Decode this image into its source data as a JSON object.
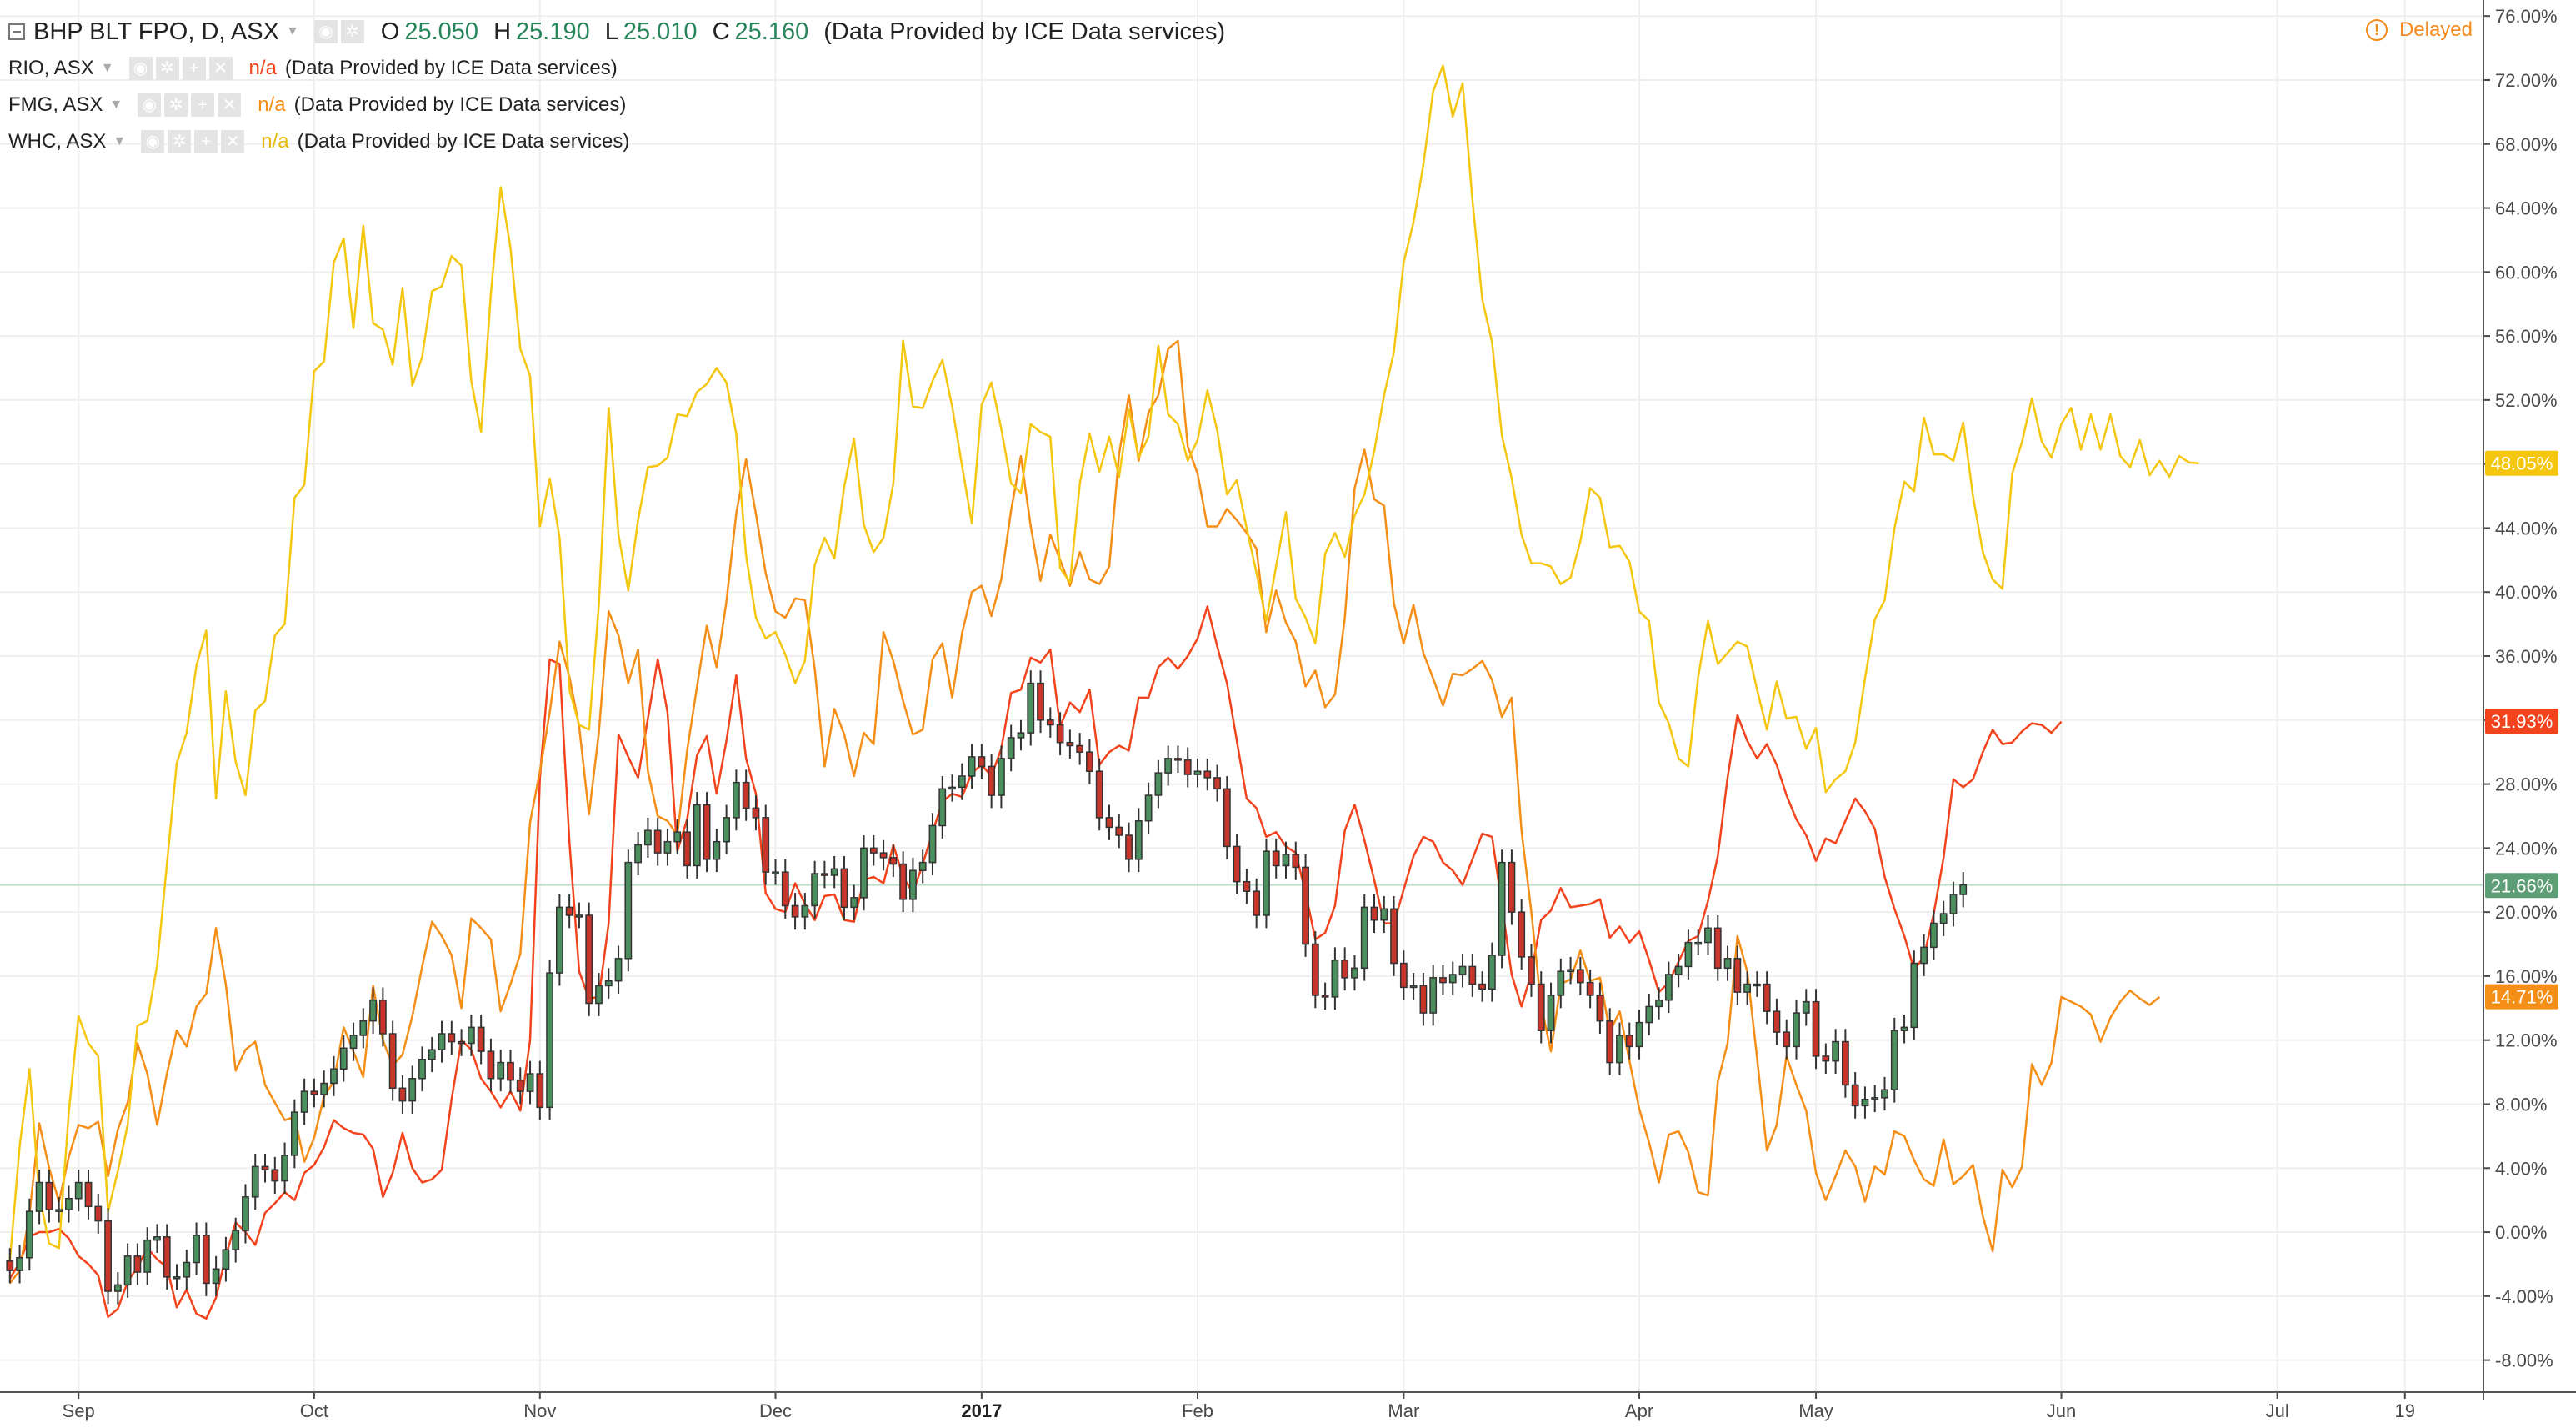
{
  "legend": {
    "main": {
      "symbol": "BHP BLT FPO, D, ASX",
      "o_label": "O",
      "o": "25.050",
      "h_label": "H",
      "h": "25.190",
      "l_label": "L",
      "l": "25.010",
      "c_label": "C",
      "c": "25.160",
      "provider": "(Data Provided by ICE Data services)"
    },
    "compare": [
      {
        "symbol": "RIO, ASX",
        "value": "n/a",
        "provider": "(Data Provided by ICE Data services)",
        "color": "#f2431c"
      },
      {
        "symbol": "FMG, ASX",
        "value": "n/a",
        "provider": "(Data Provided by ICE Data services)",
        "color": "#f58e16"
      },
      {
        "symbol": "WHC, ASX",
        "value": "n/a",
        "provider": "(Data Provided by ICE Data services)",
        "color": "#f5c60f"
      }
    ]
  },
  "status": {
    "delayed": "Delayed",
    "icon": "exclamation-circle-icon"
  },
  "colors": {
    "up": "#4b8f5e",
    "down": "#c8352a",
    "rio": "#f2431c",
    "fmg": "#f58e16",
    "whc": "#f5c60f",
    "grid": "#efefef"
  },
  "chart_data": {
    "type": "candlestick-with-comparison-lines",
    "y_unit": "%",
    "ylim": [
      -10,
      77
    ],
    "y_ticks": [
      "76.00%",
      "72.00%",
      "68.00%",
      "64.00%",
      "60.00%",
      "56.00%",
      "52.00%",
      "48.00%",
      "44.00%",
      "40.00%",
      "36.00%",
      "32.00%",
      "28.00%",
      "24.00%",
      "20.00%",
      "16.00%",
      "12.00%",
      "8.00%",
      "4.00%",
      "0.00%",
      "-4.00%",
      "-8.00%"
    ],
    "x_ticks": [
      {
        "label": "Sep",
        "x": 7,
        "bold": false
      },
      {
        "label": "Oct",
        "x": 31,
        "bold": false
      },
      {
        "label": "Nov",
        "x": 54,
        "bold": false
      },
      {
        "label": "Dec",
        "x": 78,
        "bold": false
      },
      {
        "label": "2017",
        "x": 99,
        "bold": true
      },
      {
        "label": "Feb",
        "x": 121,
        "bold": false
      },
      {
        "label": "Mar",
        "x": 142,
        "bold": false
      },
      {
        "label": "Apr",
        "x": 166,
        "bold": false
      },
      {
        "label": "May",
        "x": 184,
        "bold": false
      },
      {
        "label": "Jun",
        "x": 209,
        "bold": false
      },
      {
        "label": "Jul",
        "x": 231,
        "bold": false
      },
      {
        "label": "19",
        "x": 244,
        "bold": false
      }
    ],
    "grid": true,
    "last_values": [
      {
        "series": "WHC, ASX",
        "label": "48.05%",
        "value": 48.05
      },
      {
        "series": "RIO, ASX",
        "label": "31.93%",
        "value": 31.93
      },
      {
        "series": "BHP BLT FPO, D, ASX",
        "label": "21.66%",
        "value": 21.66
      },
      {
        "series": "FMG, ASX",
        "label": "14.71%",
        "value": 14.71
      }
    ],
    "x_domain": [
      -1,
      252
    ],
    "candle_series": {
      "name": "BHP BLT FPO, D, ASX",
      "close": [
        -2.4,
        -1.6,
        1.3,
        3.1,
        1.4,
        1.4,
        2.1,
        3.1,
        1.6,
        0.7,
        -3.7,
        -3.3,
        -1.5,
        -2.5,
        -0.5,
        -0.3,
        -2.8,
        -2.8,
        -1.9,
        -0.2,
        -3.2,
        -2.3,
        -1.1,
        0.1,
        2.2,
        4.1,
        3.9,
        3.2,
        4.8,
        7.5,
        8.8,
        8.6,
        9.3,
        10.2,
        11.5,
        12.3,
        13.2,
        14.5,
        12.4,
        9.0,
        8.2,
        9.6,
        10.8,
        11.4,
        12.4,
        11.9,
        11.8,
        12.8,
        11.3,
        9.6,
        10.6,
        9.5,
        8.8,
        9.9,
        7.8,
        16.2,
        20.3,
        19.8,
        19.8,
        14.3,
        15.4,
        15.7,
        17.1,
        23.1,
        24.2,
        25.1,
        23.7,
        24.4,
        25.0,
        22.9,
        26.7,
        23.3,
        24.4,
        25.9,
        28.1,
        26.5,
        25.9,
        22.5,
        22.5,
        20.4,
        19.7,
        20.4,
        22.4,
        22.3,
        22.7,
        20.3,
        20.9,
        24.0,
        23.7,
        23.4,
        23.0,
        20.8,
        22.6,
        23.1,
        25.4,
        27.7,
        27.8,
        28.5,
        29.7,
        29.1,
        27.3,
        29.6,
        30.9,
        31.2,
        34.3,
        32.0,
        31.7,
        30.6,
        30.4,
        30.0,
        28.8,
        25.9,
        25.3,
        24.8,
        23.3,
        25.7,
        27.3,
        28.7,
        29.6,
        29.5,
        28.6,
        28.8,
        28.4,
        27.7,
        24.1,
        21.9,
        21.3,
        19.8,
        23.8,
        22.9,
        23.6,
        22.8,
        18.0,
        14.8,
        14.7,
        17.0,
        15.9,
        16.5,
        20.3,
        19.5,
        20.2,
        16.8,
        15.3,
        15.4,
        13.7,
        15.9,
        15.6,
        16.1,
        16.6,
        15.5,
        15.2,
        17.3,
        23.1,
        20.0,
        17.2,
        15.5,
        12.6,
        14.8,
        16.3,
        16.4,
        15.6,
        14.8,
        13.2,
        10.6,
        12.3,
        11.6,
        13.1,
        14.1,
        14.5,
        16.1,
        16.6,
        18.1,
        18.1,
        19.0,
        16.5,
        17.1,
        15.0,
        15.5,
        15.5,
        13.8,
        12.5,
        11.6,
        13.7,
        14.4,
        11.0,
        10.7,
        11.9,
        9.2,
        7.9,
        8.3,
        8.4,
        8.9,
        12.6,
        12.8,
        16.8,
        17.8,
        19.3,
        19.9,
        21.1,
        21.7
      ]
    },
    "line_series": [
      {
        "name": "RIO, ASX",
        "color": "#f2431c",
        "values": [
          -2.9,
          -1.9,
          -0.3,
          0.0,
          0.0,
          0.2,
          -0.4,
          -1.5,
          -2.0,
          -2.7,
          -5.3,
          -4.8,
          -3.1,
          -2.2,
          -1.0,
          -1.7,
          -2.2,
          -4.7,
          -3.6,
          -5.1,
          -5.4,
          -4.1,
          -1.5,
          0.6,
          0.0,
          -0.8,
          1.2,
          1.8,
          2.5,
          2.0,
          3.7,
          4.2,
          5.3,
          7.0,
          6.5,
          6.2,
          6.1,
          5.2,
          2.2,
          3.7,
          6.2,
          4.0,
          3.1,
          3.3,
          3.9,
          8.3,
          12.0,
          11.4,
          9.6,
          8.8,
          7.8,
          8.8,
          7.6,
          12.0,
          28.4,
          35.8,
          35.5,
          24.4,
          16.3,
          14.6,
          14.7,
          19.3,
          31.1,
          29.7,
          28.4,
          32.1,
          35.8,
          32.5,
          23.8,
          25.8,
          29.8,
          31.0,
          27.4,
          30.7,
          34.8,
          29.6,
          27.4,
          21.2,
          20.2,
          20.0,
          21.8,
          20.5,
          19.5,
          21.0,
          21.1,
          19.5,
          19.4,
          22.0,
          22.2,
          21.8,
          24.2,
          22.2,
          21.2,
          23.0,
          25.0,
          26.9,
          27.4,
          27.2,
          28.7,
          29.2,
          28.5,
          30.2,
          33.7,
          33.9,
          35.9,
          35.6,
          36.4,
          31.6,
          33.1,
          32.5,
          33.9,
          29.2,
          30.0,
          30.4,
          30.1,
          33.4,
          33.4,
          35.3,
          35.9,
          35.2,
          36.0,
          37.1,
          39.1,
          36.6,
          34.3,
          30.7,
          27.1,
          26.5,
          24.7,
          25.0,
          24.1,
          23.7,
          21.2,
          18.3,
          18.7,
          20.4,
          25.1,
          26.7,
          24.5,
          22.0,
          19.3,
          19.3,
          21.4,
          23.5,
          24.7,
          24.4,
          23.1,
          22.6,
          21.7,
          23.3,
          24.9,
          24.7,
          20.5,
          16.1,
          14.1,
          16.2,
          19.5,
          20.1,
          21.5,
          20.3,
          20.4,
          20.5,
          20.8,
          18.4,
          19.1,
          18.1,
          18.8,
          17.0,
          15.0,
          15.6,
          16.9,
          18.2,
          18.5,
          20.7,
          23.5,
          28.4,
          32.3,
          30.7,
          29.6,
          30.5,
          29.2,
          27.3,
          25.8,
          24.8,
          23.2,
          24.6,
          24.3,
          25.7,
          27.1,
          26.3,
          25.2,
          22.2,
          20.2,
          18.5,
          16.4,
          17.2,
          19.9,
          23.4,
          28.3,
          27.8,
          28.3,
          30.0,
          31.4,
          30.5,
          30.6,
          31.3,
          31.8,
          31.7,
          31.2,
          31.9
        ]
      },
      {
        "name": "FMG, ASX",
        "color": "#f58e16",
        "values": [
          -3.2,
          -2.4,
          1.1,
          6.8,
          4.0,
          1.9,
          4.7,
          6.7,
          6.5,
          6.9,
          3.5,
          6.4,
          8.1,
          11.8,
          9.9,
          6.7,
          9.9,
          12.6,
          11.6,
          14.1,
          14.9,
          19.0,
          15.5,
          10.1,
          11.4,
          11.9,
          9.2,
          8.1,
          7.0,
          7.2,
          4.4,
          5.9,
          8.5,
          9.4,
          12.8,
          11.3,
          9.7,
          15.4,
          12.0,
          10.4,
          11.1,
          13.5,
          16.6,
          19.4,
          18.5,
          17.3,
          14.0,
          19.6,
          19.0,
          18.3,
          13.8,
          15.5,
          17.4,
          25.6,
          28.8,
          32.5,
          36.9,
          34.7,
          31.6,
          26.1,
          31.2,
          38.8,
          37.3,
          34.3,
          36.4,
          28.8,
          26.0,
          25.7,
          24.8,
          30.1,
          34.1,
          37.9,
          35.3,
          39.4,
          44.9,
          48.3,
          44.9,
          41.2,
          38.8,
          38.4,
          39.6,
          39.5,
          35.2,
          29.1,
          32.7,
          31.1,
          28.5,
          31.2,
          30.5,
          37.5,
          35.7,
          33.2,
          31.1,
          31.4,
          35.8,
          36.8,
          33.4,
          37.4,
          40.0,
          40.4,
          38.5,
          40.8,
          45.1,
          48.5,
          44.1,
          40.7,
          43.6,
          42.0,
          40.4,
          42.5,
          40.8,
          40.5,
          41.6,
          48.6,
          52.3,
          48.2,
          51.2,
          52.3,
          55.2,
          55.7,
          49.1,
          47.4,
          44.1,
          44.1,
          45.2,
          44.5,
          43.7,
          42.7,
          37.5,
          40.1,
          38.1,
          36.9,
          34.1,
          35.1,
          32.8,
          33.6,
          38.4,
          46.5,
          48.9,
          45.8,
          45.4,
          39.3,
          36.8,
          39.2,
          36.2,
          34.6,
          32.9,
          34.9,
          34.8,
          35.2,
          35.7,
          34.5,
          32.2,
          33.4,
          25.1,
          20.0,
          14.2,
          11.3,
          15.5,
          15.8,
          17.6,
          15.7,
          15.9,
          12.5,
          13.8,
          10.7,
          7.7,
          5.6,
          3.1,
          6.1,
          6.3,
          5.0,
          2.5,
          2.3,
          9.4,
          11.8,
          18.5,
          16.3,
          10.9,
          5.1,
          6.7,
          11.0,
          9.2,
          7.6,
          3.7,
          2.0,
          3.5,
          5.1,
          4.1,
          1.9,
          4.1,
          3.6,
          6.3,
          6.0,
          4.5,
          3.3,
          2.9,
          5.8,
          3.0,
          3.5,
          4.2,
          1.0,
          -1.2,
          3.9,
          2.8,
          4.1,
          10.5,
          9.2,
          10.6,
          14.7,
          14.4,
          14.1,
          13.6,
          11.9,
          13.4,
          14.4,
          15.1,
          14.6,
          14.2,
          14.7
        ]
      },
      {
        "name": "WHC, ASX",
        "color": "#f5c60f",
        "values": [
          -1.8,
          5.4,
          10.2,
          2.3,
          -0.7,
          -1.0,
          7.5,
          13.5,
          11.8,
          11.0,
          1.3,
          3.8,
          6.7,
          12.9,
          13.2,
          16.7,
          23.0,
          29.3,
          31.2,
          35.4,
          37.6,
          27.1,
          33.8,
          29.4,
          27.3,
          32.6,
          33.2,
          37.3,
          38.0,
          45.9,
          46.7,
          53.8,
          54.4,
          60.6,
          62.1,
          56.5,
          62.9,
          56.8,
          56.4,
          54.2,
          59.0,
          52.9,
          54.7,
          58.8,
          59.1,
          61.0,
          60.4,
          53.2,
          50.0,
          58.6,
          65.3,
          61.5,
          55.2,
          53.5,
          44.1,
          47.1,
          43.4,
          33.9,
          31.7,
          31.4,
          39.2,
          51.5,
          43.6,
          40.1,
          44.5,
          47.8,
          47.9,
          48.4,
          51.1,
          51.0,
          52.5,
          53.0,
          54.0,
          53.1,
          49.9,
          42.3,
          38.4,
          37.1,
          37.5,
          36.1,
          34.3,
          35.7,
          41.7,
          43.4,
          42.1,
          46.6,
          49.6,
          44.2,
          42.5,
          43.4,
          46.8,
          55.7,
          51.6,
          51.5,
          53.2,
          54.5,
          51.6,
          47.9,
          44.3,
          51.7,
          53.1,
          50.2,
          46.8,
          46.2,
          50.5,
          50.0,
          49.7,
          41.5,
          40.6,
          46.8,
          49.9,
          47.5,
          49.7,
          47.2,
          51.4,
          48.4,
          49.7,
          55.4,
          51.1,
          50.5,
          48.2,
          49.5,
          52.6,
          50.1,
          46.1,
          47.0,
          44.0,
          41.2,
          38.2,
          41.6,
          45.0,
          39.6,
          38.4,
          36.8,
          42.4,
          43.7,
          42.2,
          44.8,
          46.1,
          48.8,
          52.3,
          55.0,
          60.6,
          63.1,
          66.7,
          71.3,
          72.9,
          69.7,
          71.8,
          64.5,
          58.3,
          55.6,
          49.8,
          47.1,
          43.6,
          41.8,
          41.8,
          41.6,
          40.5,
          40.9,
          43.2,
          46.5,
          45.9,
          42.8,
          42.9,
          41.9,
          38.8,
          38.2,
          33.1,
          31.8,
          29.6,
          29.1,
          34.7,
          38.2,
          35.5,
          36.2,
          36.9,
          36.6,
          33.9,
          31.4,
          34.4,
          32.1,
          32.2,
          30.2,
          31.5,
          27.5,
          28.3,
          28.8,
          30.6,
          34.6,
          38.3,
          39.5,
          44.0,
          46.9,
          46.3,
          50.9,
          48.6,
          48.6,
          48.2,
          50.6,
          46.0,
          42.5,
          40.8,
          40.2,
          47.4,
          49.4,
          52.1,
          49.4,
          48.4,
          50.5,
          51.5,
          48.9,
          51.1,
          48.9,
          51.1,
          48.5,
          47.8,
          49.5,
          47.3,
          48.2,
          47.2,
          48.5,
          48.1,
          48.05
        ]
      }
    ]
  }
}
